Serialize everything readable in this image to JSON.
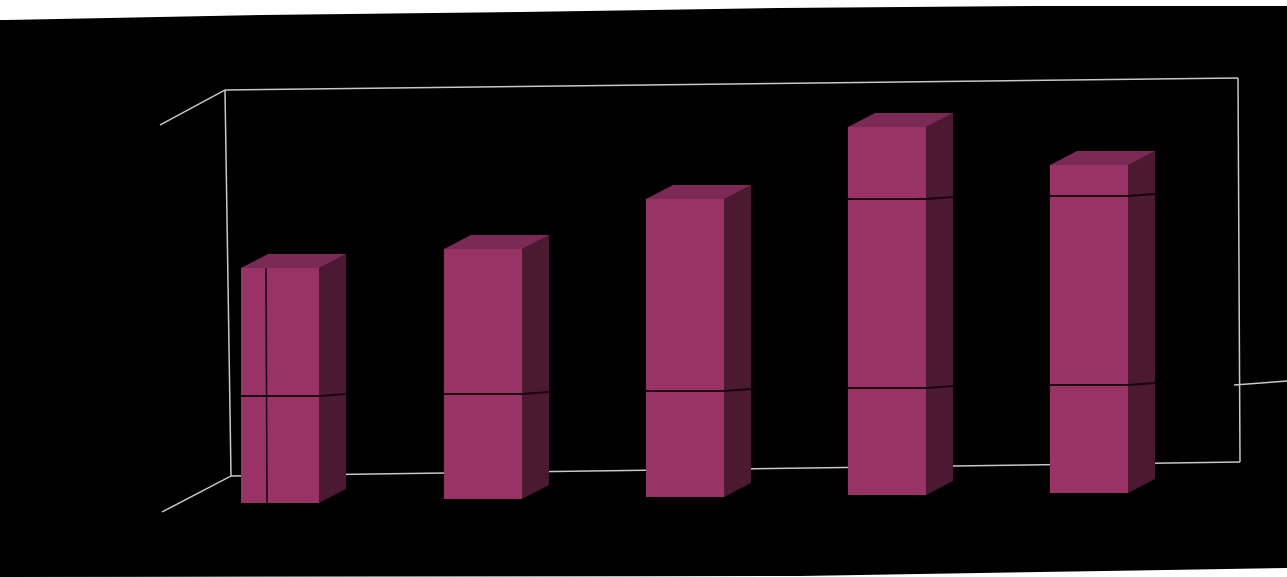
{
  "chart_data": {
    "type": "bar",
    "style": "3d",
    "categories": [
      "",
      "",
      "",
      "",
      ""
    ],
    "values": [
      235,
      250,
      298,
      368,
      328
    ],
    "ylim": [
      0,
      400
    ],
    "grid": false,
    "legend": "none",
    "series": [
      {
        "values": [
          235,
          250,
          298,
          368,
          328
        ]
      }
    ],
    "background_color": "#000000",
    "frame_color": "#c8c8c8",
    "bar_colors": {
      "front": "#993366",
      "side": "#4c1933",
      "top": "#7a2a55",
      "seam": "#1a0010"
    }
  }
}
